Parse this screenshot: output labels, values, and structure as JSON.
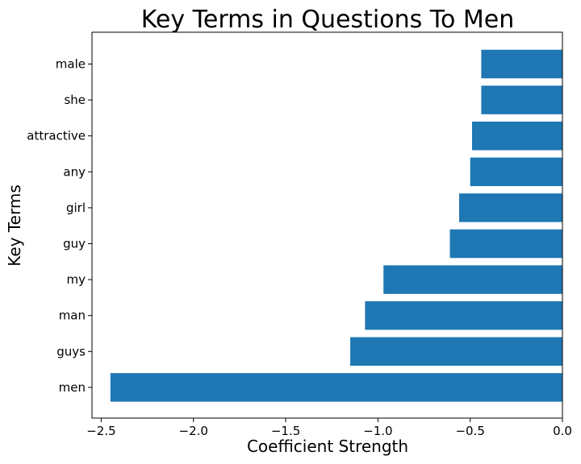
{
  "chart_data": {
    "type": "bar",
    "orientation": "horizontal",
    "title": "Key Terms in Questions To Men",
    "xlabel": "Coefficient Strength",
    "ylabel": "Key Terms",
    "categories": [
      "male",
      "she",
      "attractive",
      "any",
      "girl",
      "guy",
      "my",
      "man",
      "guys",
      "men"
    ],
    "values": [
      -0.44,
      -0.44,
      -0.49,
      -0.5,
      -0.56,
      -0.61,
      -0.97,
      -1.07,
      -1.15,
      -2.45
    ],
    "xlim": [
      -2.55,
      0.0
    ],
    "xticks": [
      -2.5,
      -2.0,
      -1.5,
      -1.0,
      -0.5,
      0.0
    ],
    "xtick_labels": [
      "−2.5",
      "−2.0",
      "−1.5",
      "−1.0",
      "−0.5",
      "0.0"
    ],
    "bar_color": "#1f77b4",
    "grid": false,
    "legend": "none"
  }
}
